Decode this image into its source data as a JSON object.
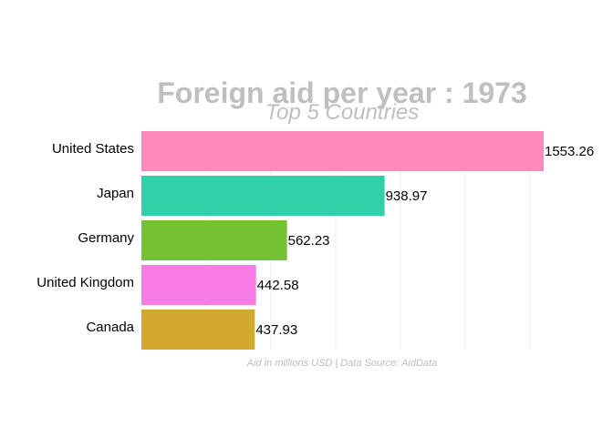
{
  "chart_data": {
    "type": "bar",
    "orientation": "horizontal",
    "title": "Foreign aid per year : 1973",
    "subtitle": "Top 5 Countries",
    "caption": "Aid in millions USD | Data Source: AidData",
    "categories": [
      "United States",
      "Japan",
      "Germany",
      "United Kingdom",
      "Canada"
    ],
    "values": [
      1553.26,
      938.97,
      562.23,
      442.58,
      437.93
    ],
    "value_labels": [
      "1553.26",
      "938.97",
      "562.23",
      "442.58",
      "437.93"
    ],
    "colors": [
      "#ff88bb",
      "#33cfa9",
      "#74c131",
      "#f87ce3",
      "#d2a92e"
    ],
    "xlim": [
      0,
      1553.26
    ],
    "grid": true,
    "grid_values": [
      250,
      500,
      750,
      1000,
      1250,
      1500
    ],
    "legend": "none"
  }
}
